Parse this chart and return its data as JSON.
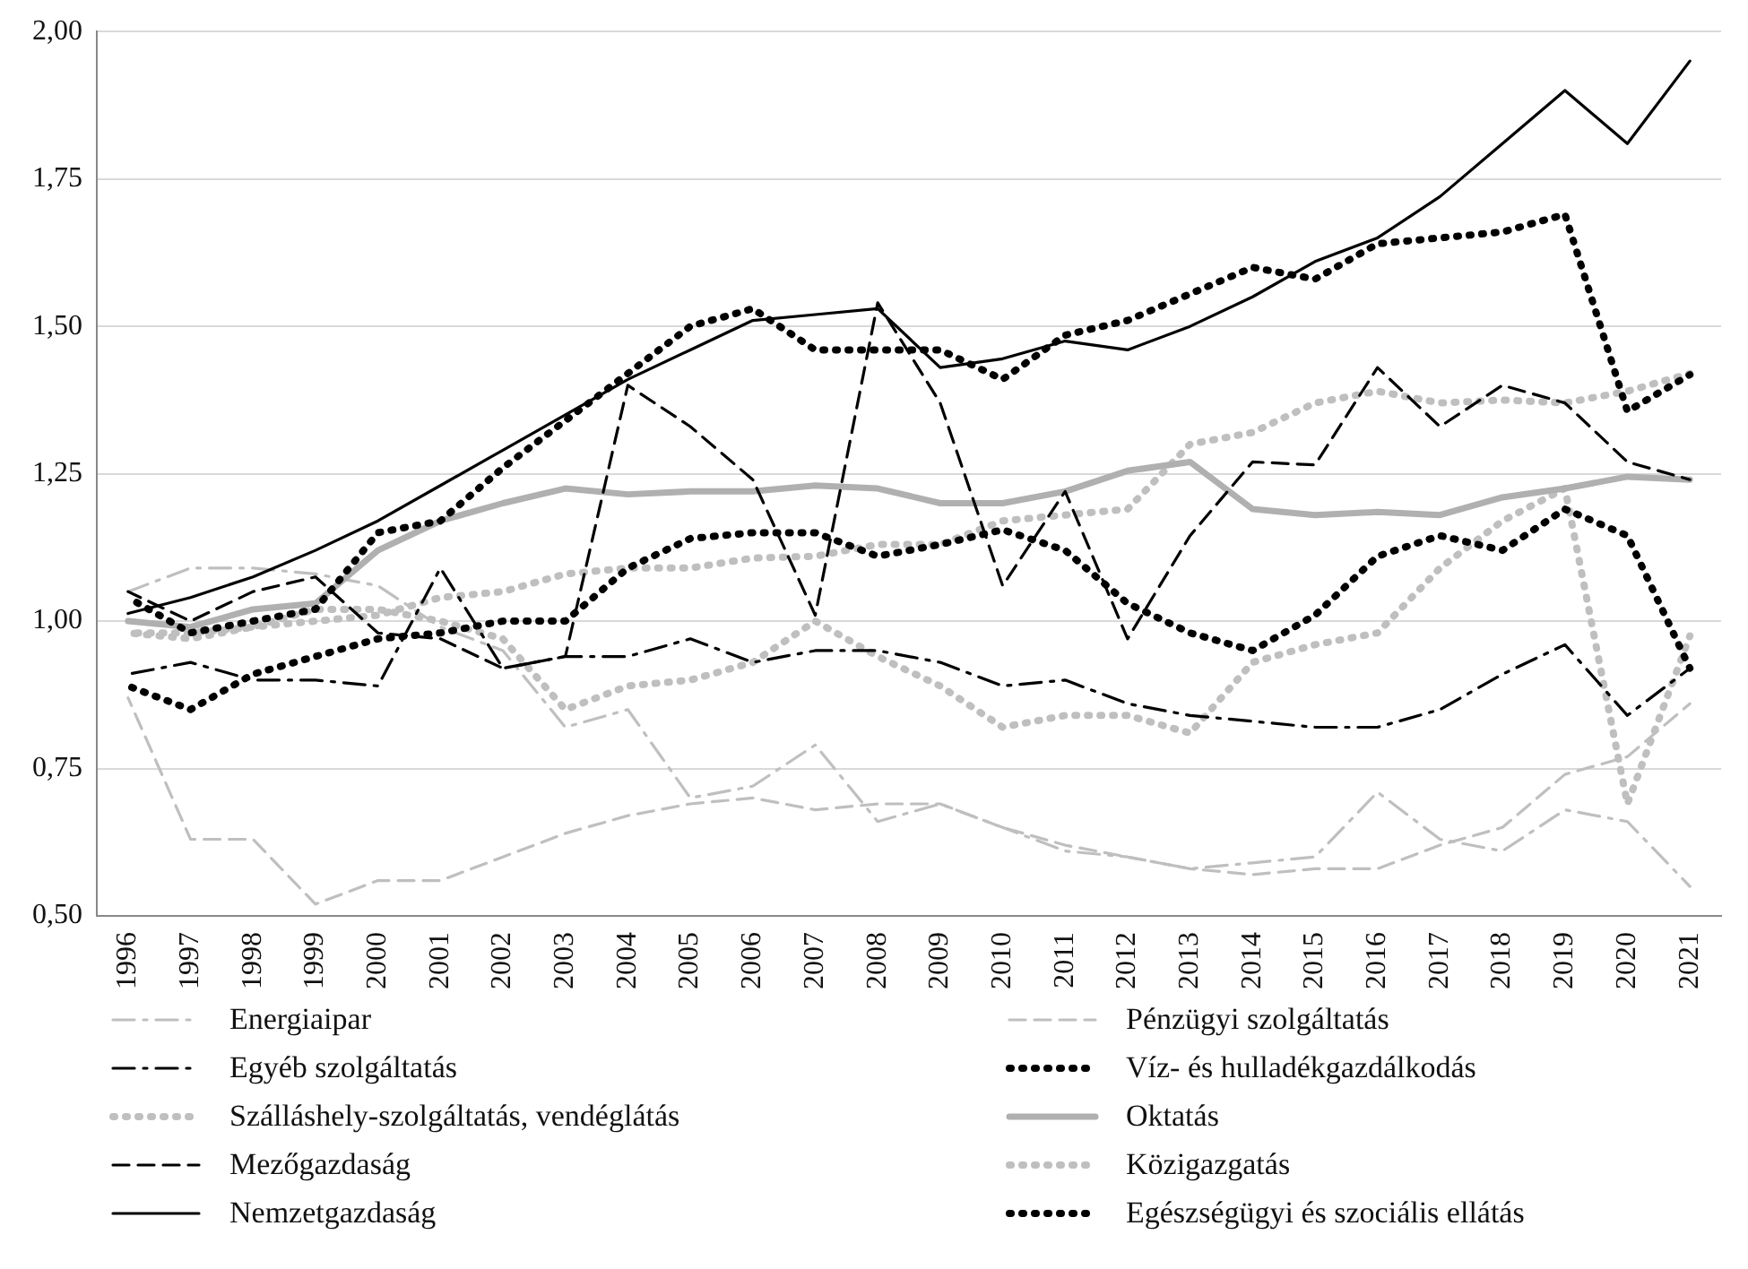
{
  "chart_data": {
    "type": "line",
    "categories": [
      "1996",
      "1997",
      "1998",
      "1999",
      "2000",
      "2001",
      "2002",
      "2003",
      "2004",
      "2005",
      "2006",
      "2007",
      "2008",
      "2009",
      "2010",
      "2011",
      "2012",
      "2013",
      "2014",
      "2015",
      "2016",
      "2017",
      "2018",
      "2019",
      "2020",
      "2021"
    ],
    "ylim": [
      0.5,
      2.0
    ],
    "yticks": [
      {
        "value": 0.5,
        "label": "0,50"
      },
      {
        "value": 0.75,
        "label": "0,75"
      },
      {
        "value": 1.0,
        "label": "1,00"
      },
      {
        "value": 1.25,
        "label": "1,25"
      },
      {
        "value": 1.5,
        "label": "1,50"
      },
      {
        "value": 1.75,
        "label": "1,75"
      },
      {
        "value": 2.0,
        "label": "2,00"
      }
    ],
    "grid": "y",
    "legend": "bottom",
    "marker": "none",
    "series": [
      {
        "name": "Energiaipar",
        "color": "#bfbfbf",
        "line_style": "dashdot",
        "values": [
          1.05,
          1.09,
          1.09,
          1.08,
          1.06,
          0.99,
          0.95,
          0.82,
          0.85,
          0.7,
          0.72,
          0.79,
          0.66,
          0.69,
          0.65,
          0.61,
          0.6,
          0.58,
          0.59,
          0.6,
          0.71,
          0.63,
          0.61,
          0.68,
          0.66,
          0.55
        ]
      },
      {
        "name": "Pénzügyi szolgáltatás",
        "color": "#bfbfbf",
        "line_style": "dashed",
        "values": [
          0.87,
          0.63,
          0.63,
          0.52,
          0.56,
          0.56,
          0.6,
          0.64,
          0.67,
          0.69,
          0.7,
          0.68,
          0.69,
          0.69,
          0.65,
          0.62,
          0.6,
          0.58,
          0.57,
          0.58,
          0.58,
          0.62,
          0.65,
          0.74,
          0.77,
          0.86
        ]
      },
      {
        "name": "Egyéb szolgáltatás",
        "color": "#000000",
        "line_style": "dashdot",
        "values": [
          0.91,
          0.93,
          0.9,
          0.9,
          0.89,
          1.09,
          0.92,
          0.94,
          0.94,
          0.97,
          0.93,
          0.95,
          0.95,
          0.93,
          0.89,
          0.9,
          0.86,
          0.84,
          0.83,
          0.82,
          0.82,
          0.85,
          0.91,
          0.96,
          0.84,
          0.92
        ]
      },
      {
        "name": "Víz- és hulladékgazdálkodás",
        "color": "#000000",
        "line_style": "dotted",
        "values": [
          0.89,
          0.85,
          0.91,
          0.94,
          0.97,
          0.98,
          1.0,
          1.0,
          1.09,
          1.14,
          1.15,
          1.15,
          1.11,
          1.13,
          1.155,
          1.12,
          1.03,
          0.98,
          0.95,
          1.01,
          1.11,
          1.145,
          1.12,
          1.19,
          1.145,
          0.92
        ]
      },
      {
        "name": "Szálláshely-szolgáltatás, vendéglátás",
        "color": "#bfbfbf",
        "line_style": "dotted",
        "values": [
          0.98,
          0.97,
          0.99,
          1.02,
          1.02,
          1.0,
          0.97,
          0.85,
          0.89,
          0.9,
          0.93,
          1.0,
          0.94,
          0.89,
          0.82,
          0.84,
          0.84,
          0.81,
          0.93,
          0.96,
          0.98,
          1.09,
          1.17,
          1.225,
          0.69,
          0.975
        ]
      },
      {
        "name": "Oktatás",
        "color": "#b0b0b0",
        "line_style": "solid",
        "values": [
          1.0,
          0.99,
          1.02,
          1.03,
          1.12,
          1.17,
          1.2,
          1.225,
          1.215,
          1.22,
          1.22,
          1.23,
          1.225,
          1.2,
          1.2,
          1.22,
          1.255,
          1.27,
          1.19,
          1.18,
          1.185,
          1.18,
          1.21,
          1.225,
          1.245,
          1.24
        ]
      },
      {
        "name": "Mezőgazdaság",
        "color": "#000000",
        "line_style": "dashed",
        "values": [
          1.05,
          1.0,
          1.05,
          1.075,
          0.98,
          0.97,
          0.92,
          0.94,
          1.4,
          1.33,
          1.24,
          1.01,
          1.54,
          1.37,
          1.06,
          1.22,
          0.97,
          1.145,
          1.27,
          1.265,
          1.43,
          1.33,
          1.4,
          1.37,
          1.27,
          1.24
        ]
      },
      {
        "name": "Közigazgatás",
        "color": "#bfbfbf",
        "line_style": "dotted",
        "values": [
          0.98,
          0.98,
          0.99,
          1.0,
          1.01,
          1.04,
          1.05,
          1.08,
          1.09,
          1.09,
          1.107,
          1.11,
          1.13,
          1.13,
          1.17,
          1.18,
          1.19,
          1.3,
          1.32,
          1.37,
          1.39,
          1.37,
          1.375,
          1.37,
          1.39,
          1.42
        ]
      },
      {
        "name": "Nemzetgazdaság",
        "color": "#000000",
        "line_style": "solid",
        "values": [
          1.013,
          1.04,
          1.075,
          1.12,
          1.17,
          1.23,
          1.29,
          1.35,
          1.41,
          1.46,
          1.51,
          1.52,
          1.53,
          1.43,
          1.445,
          1.475,
          1.46,
          1.5,
          1.55,
          1.61,
          1.65,
          1.72,
          1.81,
          1.9,
          1.81,
          1.95
        ]
      },
      {
        "name": "Egészségügyi és szociális ellátás",
        "color": "#000000",
        "line_style": "dotted",
        "values": [
          1.04,
          0.98,
          1.0,
          1.02,
          1.15,
          1.17,
          1.26,
          1.34,
          1.42,
          1.5,
          1.53,
          1.46,
          1.46,
          1.46,
          1.41,
          1.485,
          1.51,
          1.555,
          1.6,
          1.58,
          1.64,
          1.65,
          1.66,
          1.69,
          1.356,
          1.418
        ]
      }
    ]
  }
}
